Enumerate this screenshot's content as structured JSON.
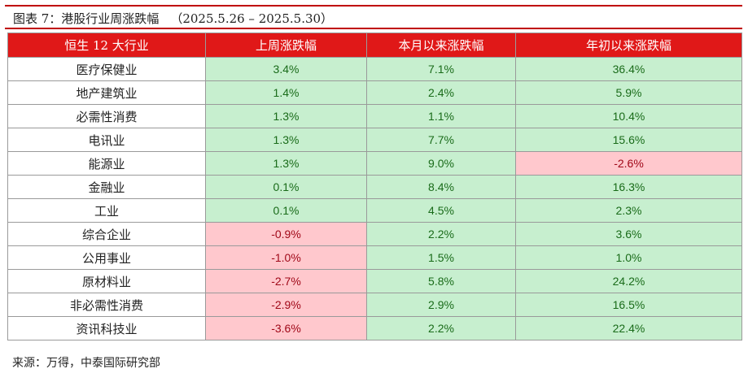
{
  "title": {
    "label": "图表 7：港股行业周涨跌幅",
    "range": "（2025.5.26 – 2025.5.30）"
  },
  "table": {
    "headers": [
      "恒生 12 大行业",
      "上周涨跌幅",
      "本月以来涨跌幅",
      "年初以来涨跌幅"
    ],
    "rows": [
      {
        "name": "医疗保健业",
        "week": "3.4%",
        "month": "7.1%",
        "ytd": "36.4%"
      },
      {
        "name": "地产建筑业",
        "week": "1.4%",
        "month": "2.4%",
        "ytd": "5.9%"
      },
      {
        "name": "必需性消费",
        "week": "1.3%",
        "month": "1.1%",
        "ytd": "10.4%"
      },
      {
        "name": "电讯业",
        "week": "1.3%",
        "month": "7.7%",
        "ytd": "15.6%"
      },
      {
        "name": "能源业",
        "week": "1.3%",
        "month": "9.0%",
        "ytd": "-2.6%"
      },
      {
        "name": "金融业",
        "week": "0.1%",
        "month": "8.4%",
        "ytd": "16.3%"
      },
      {
        "name": "工业",
        "week": "0.1%",
        "month": "4.5%",
        "ytd": "2.3%"
      },
      {
        "name": "综合企业",
        "week": "-0.9%",
        "month": "2.2%",
        "ytd": "3.6%"
      },
      {
        "name": "公用事业",
        "week": "-1.0%",
        "month": "1.5%",
        "ytd": "1.0%"
      },
      {
        "name": "原材料业",
        "week": "-2.7%",
        "month": "5.8%",
        "ytd": "24.2%"
      },
      {
        "name": "非必需性消费",
        "week": "-2.9%",
        "month": "2.9%",
        "ytd": "16.5%"
      },
      {
        "name": "资讯科技业",
        "week": "-3.6%",
        "month": "2.2%",
        "ytd": "22.4%"
      }
    ]
  },
  "colors": {
    "header_bg": "#e01818",
    "positive_bg": "#c7efcf",
    "negative_bg": "#ffc8cd",
    "positive_text": "#196b19",
    "negative_text": "#a00818",
    "title_rule": "#c00000"
  },
  "source": "来源：万得，中泰国际研究部"
}
